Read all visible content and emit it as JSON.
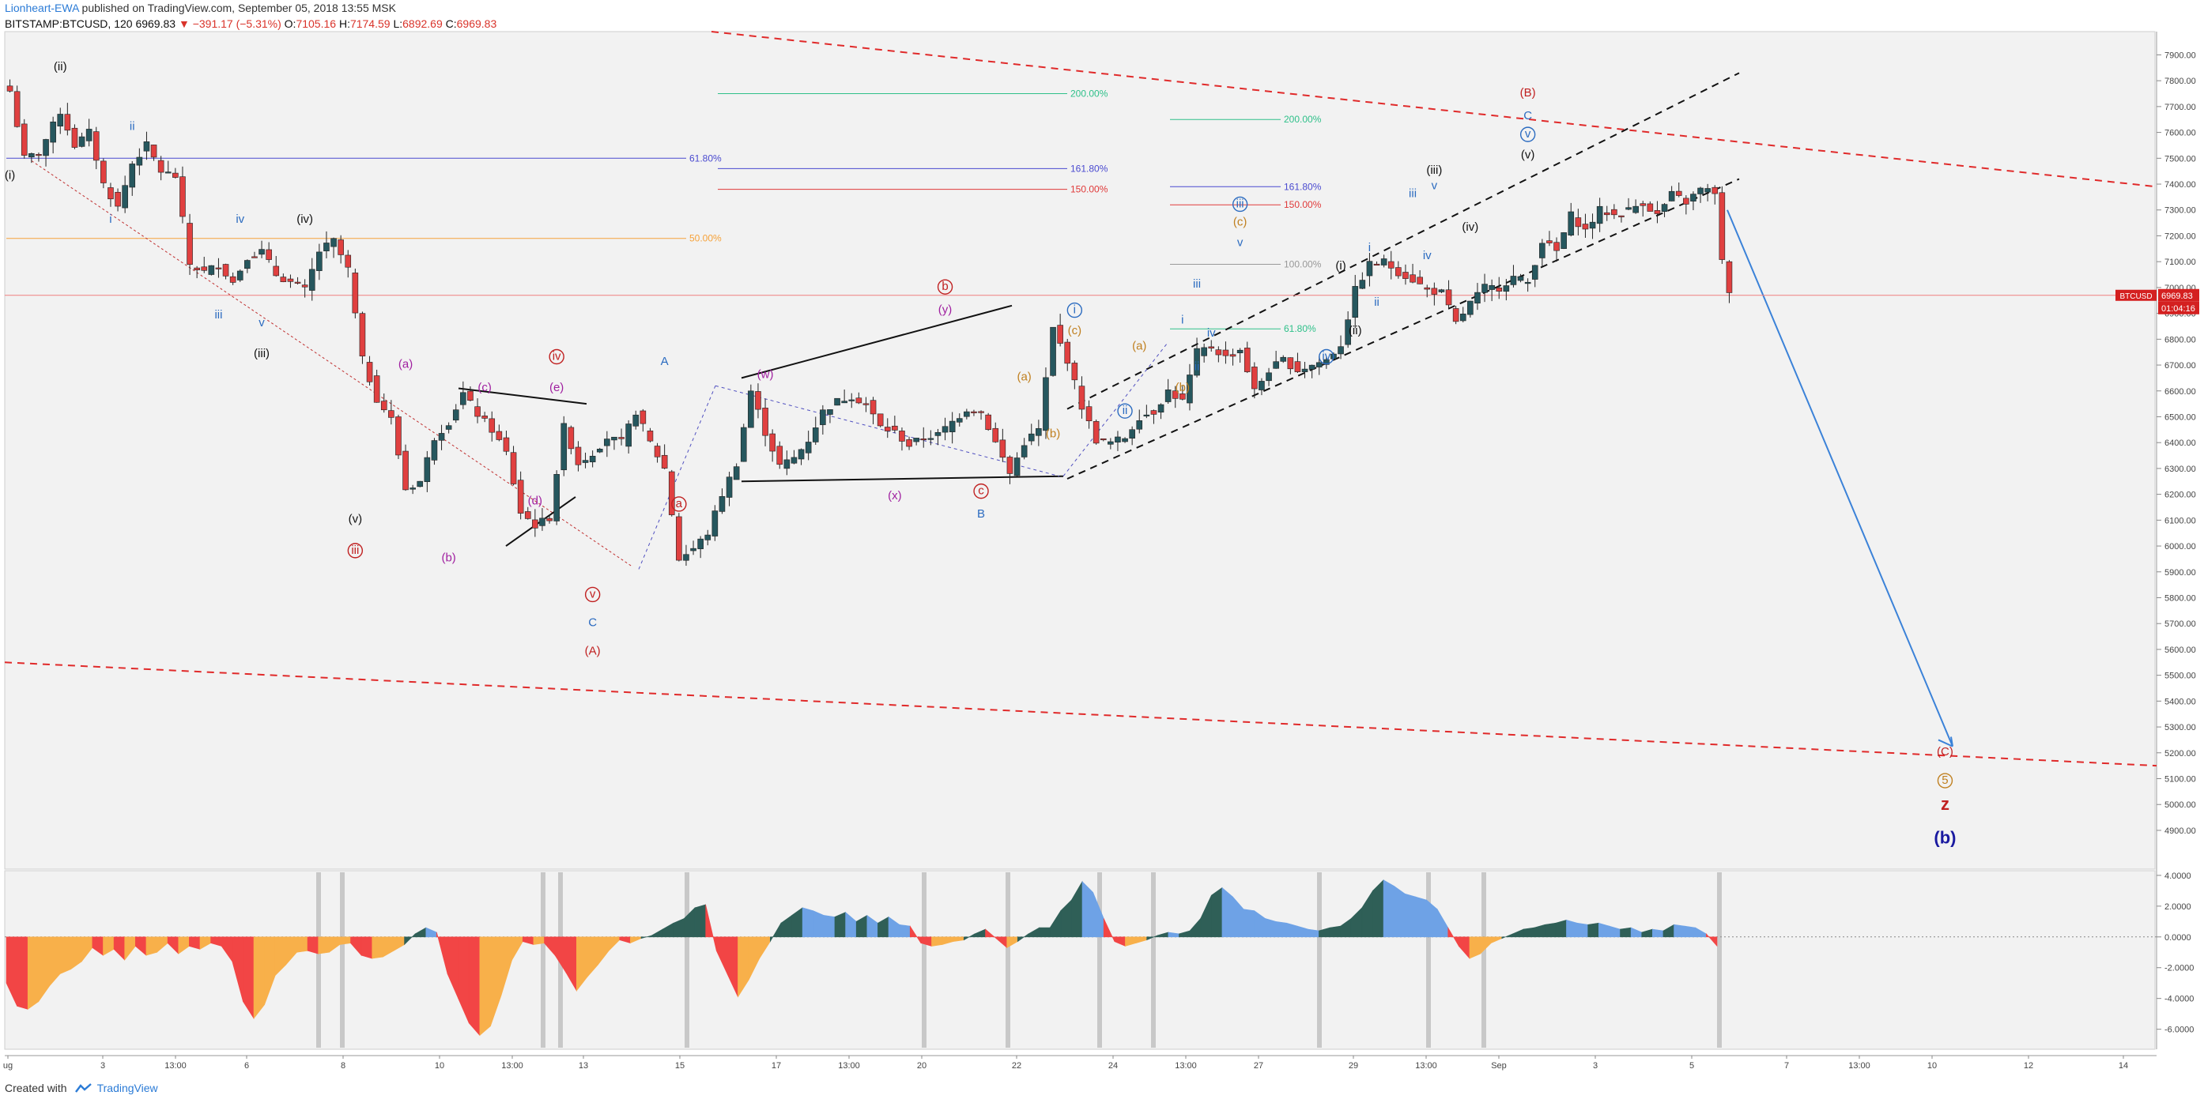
{
  "header": {
    "author": "Lionheart-EWA",
    "published": "published on TradingView.com, September 05, 2018 13:55 MSK",
    "symbol": "BITSTAMP:BTCUSD, 120",
    "last": "6969.83",
    "change": "▼ −391.17 (−5.31%)",
    "o_label": "O:",
    "o": "7105.16",
    "h_label": "H:",
    "h": "7174.59",
    "l_label": "L:",
    "l": "6892.69",
    "c_label": "C:",
    "c": "6969.83"
  },
  "footer": {
    "created_with": "Created with",
    "brand": "TradingView",
    "brand_icon": "tradingview-logo-icon"
  },
  "colors": {
    "up": "#26575e",
    "down": "#e04040",
    "wick": "#222222",
    "channel_red": "#e02a2a",
    "price_line": "#f08080",
    "projection": "#3b82d8",
    "osc_green": "#2f5f57",
    "osc_blue": "#6ea2e6",
    "osc_red": "#f24545",
    "osc_orange": "#f8b04a"
  },
  "chart_data": {
    "type": "candlestick",
    "symbol": "BITSTAMP:BTCUSD",
    "interval": "120",
    "last_price": 6969.83,
    "price_tag": "6969.83",
    "symbol_tag": "BTCUSD",
    "countdown_tag": "01:04:16",
    "ylim": [
      4750,
      7990
    ],
    "x_ticks": [
      "ug",
      "3",
      "13:00",
      "6",
      "8",
      "10",
      "13:00",
      "13",
      "15",
      "17",
      "13:00",
      "20",
      "22",
      "24",
      "13:00",
      "27",
      "29",
      "13:00",
      "Sep",
      "3",
      "5",
      "7",
      "13:00",
      "10",
      "12",
      "14"
    ],
    "price_ticks": [
      4900,
      5000,
      5100,
      5200,
      5300,
      5400,
      5500,
      5600,
      5700,
      5800,
      5900,
      6000,
      6100,
      6200,
      6300,
      6400,
      6500,
      6600,
      6700,
      6800,
      6900,
      7000,
      7100,
      7200,
      7300,
      7400,
      7500,
      7600,
      7700,
      7800,
      7900
    ],
    "price_path": [
      [
        0,
        7760
      ],
      [
        2,
        7500
      ],
      [
        4,
        7520
      ],
      [
        7,
        7680
      ],
      [
        9,
        7550
      ],
      [
        11,
        7600
      ],
      [
        13,
        7400
      ],
      [
        15,
        7310
      ],
      [
        17,
        7480
      ],
      [
        19,
        7550
      ],
      [
        21,
        7450
      ],
      [
        23,
        7430
      ],
      [
        25,
        7090
      ],
      [
        27,
        7060
      ],
      [
        29,
        7090
      ],
      [
        31,
        7020
      ],
      [
        33,
        7120
      ],
      [
        35,
        7140
      ],
      [
        37,
        7050
      ],
      [
        39,
        7020
      ],
      [
        41,
        6990
      ],
      [
        43,
        7140
      ],
      [
        45,
        7180
      ],
      [
        47,
        7070
      ],
      [
        49,
        6720
      ],
      [
        51,
        6570
      ],
      [
        53,
        6490
      ],
      [
        55,
        6220
      ],
      [
        57,
        6250
      ],
      [
        59,
        6420
      ],
      [
        61,
        6480
      ],
      [
        63,
        6590
      ],
      [
        65,
        6510
      ],
      [
        67,
        6450
      ],
      [
        69,
        6360
      ],
      [
        71,
        6130
      ],
      [
        73,
        6080
      ],
      [
        75,
        6110
      ],
      [
        77,
        6460
      ],
      [
        79,
        6320
      ],
      [
        81,
        6360
      ],
      [
        83,
        6420
      ],
      [
        85,
        6400
      ],
      [
        87,
        6520
      ],
      [
        89,
        6400
      ],
      [
        91,
        6300
      ],
      [
        93,
        5950
      ],
      [
        95,
        5990
      ],
      [
        97,
        6050
      ],
      [
        99,
        6200
      ],
      [
        101,
        6320
      ],
      [
        103,
        6600
      ],
      [
        105,
        6440
      ],
      [
        107,
        6310
      ],
      [
        109,
        6340
      ],
      [
        111,
        6410
      ],
      [
        113,
        6520
      ],
      [
        115,
        6560
      ],
      [
        117,
        6580
      ],
      [
        119,
        6550
      ],
      [
        121,
        6460
      ],
      [
        123,
        6440
      ],
      [
        125,
        6390
      ],
      [
        127,
        6420
      ],
      [
        129,
        6430
      ],
      [
        131,
        6480
      ],
      [
        133,
        6530
      ],
      [
        135,
        6520
      ],
      [
        137,
        6400
      ],
      [
        139,
        6280
      ],
      [
        141,
        6400
      ],
      [
        143,
        6450
      ],
      [
        145,
        6840
      ],
      [
        147,
        6720
      ],
      [
        149,
        6540
      ],
      [
        151,
        6410
      ],
      [
        153,
        6400
      ],
      [
        155,
        6420
      ],
      [
        157,
        6500
      ],
      [
        159,
        6520
      ],
      [
        161,
        6600
      ],
      [
        163,
        6560
      ],
      [
        165,
        6750
      ],
      [
        167,
        6770
      ],
      [
        169,
        6730
      ],
      [
        171,
        6760
      ],
      [
        173,
        6600
      ],
      [
        175,
        6680
      ],
      [
        177,
        6720
      ],
      [
        179,
        6680
      ],
      [
        181,
        6700
      ],
      [
        183,
        6720
      ],
      [
        185,
        6780
      ],
      [
        187,
        6990
      ],
      [
        189,
        7090
      ],
      [
        191,
        7100
      ],
      [
        193,
        7060
      ],
      [
        195,
        7030
      ],
      [
        197,
        6990
      ],
      [
        199,
        6980
      ],
      [
        201,
        6860
      ],
      [
        203,
        6940
      ],
      [
        205,
        7000
      ],
      [
        207,
        7000
      ],
      [
        209,
        7040
      ],
      [
        211,
        7020
      ],
      [
        213,
        7180
      ],
      [
        215,
        7140
      ],
      [
        217,
        7280
      ],
      [
        219,
        7220
      ],
      [
        221,
        7300
      ],
      [
        223,
        7280
      ],
      [
        225,
        7300
      ],
      [
        227,
        7330
      ],
      [
        229,
        7280
      ],
      [
        231,
        7360
      ],
      [
        233,
        7330
      ],
      [
        235,
        7380
      ],
      [
        237,
        7370
      ],
      [
        238,
        7100
      ],
      [
        239,
        6970
      ]
    ],
    "fib_levels": [
      {
        "label": "61.80%",
        "price": 7500,
        "color": "#4a4ad0"
      },
      {
        "label": "50.00%",
        "price": 7190,
        "color": "#f6a23a"
      },
      {
        "label": "200.00%",
        "price": 7750,
        "color": "#2fc08a"
      },
      {
        "label": "161.80%",
        "price": 7460,
        "color": "#4a4ad0"
      },
      {
        "label": "150.00%",
        "price": 7380,
        "color": "#e03a3a"
      },
      {
        "label": "200.00%",
        "price": 7650,
        "color": "#2fc08a"
      },
      {
        "label": "161.80%",
        "price": 7390,
        "color": "#4a4ad0"
      },
      {
        "label": "150.00%",
        "price": 7320,
        "color": "#e03a3a"
      },
      {
        "label": "100.00%",
        "price": 7090,
        "color": "#999999"
      },
      {
        "label": "61.80%",
        "price": 6840,
        "color": "#2fc08a"
      }
    ],
    "wave_labels": [
      {
        "text": "(i)",
        "color": "#111",
        "c": 0,
        "p": 7420
      },
      {
        "text": "(ii)",
        "color": "#111",
        "c": 7,
        "p": 7840
      },
      {
        "text": "ii",
        "color": "#2b6bc0",
        "c": 17,
        "p": 7610
      },
      {
        "text": "i",
        "color": "#2b6bc0",
        "c": 14,
        "p": 7250
      },
      {
        "text": "iv",
        "color": "#2b6bc0",
        "c": 32,
        "p": 7250
      },
      {
        "text": "(iv)",
        "color": "#111",
        "c": 41,
        "p": 7250
      },
      {
        "text": "iii",
        "color": "#2b6bc0",
        "c": 29,
        "p": 6880
      },
      {
        "text": "v",
        "color": "#2b6bc0",
        "c": 35,
        "p": 6850
      },
      {
        "text": "(iii)",
        "color": "#111",
        "c": 35,
        "p": 6730
      },
      {
        "text": "(a)",
        "color": "#a020a0",
        "c": 55,
        "p": 6690
      },
      {
        "text": "(c)",
        "color": "#a020a0",
        "c": 66,
        "p": 6600
      },
      {
        "text": "(e)",
        "color": "#a020a0",
        "c": 76,
        "p": 6600
      },
      {
        "text": "iv",
        "color": "#c02020",
        "c": 76,
        "p": 6720,
        "circle": true
      },
      {
        "text": "(d)",
        "color": "#a020a0",
        "c": 73,
        "p": 6160
      },
      {
        "text": "(v)",
        "color": "#111",
        "c": 48,
        "p": 6090
      },
      {
        "text": "iii",
        "color": "#c02020",
        "c": 48,
        "p": 5970,
        "circle": true
      },
      {
        "text": "(b)",
        "color": "#a020a0",
        "c": 61,
        "p": 5940
      },
      {
        "text": "v",
        "color": "#c02020",
        "c": 81,
        "p": 5800,
        "circle": true
      },
      {
        "text": "C",
        "color": "#2b6bc0",
        "c": 81,
        "p": 5690
      },
      {
        "text": "(A)",
        "color": "#c02020",
        "c": 81,
        "p": 5580
      },
      {
        "text": "A",
        "color": "#2b6bc0",
        "c": 91,
        "p": 6700
      },
      {
        "text": "a",
        "color": "#c02020",
        "c": 93,
        "p": 6150,
        "circle": true
      },
      {
        "text": "(w)",
        "color": "#a020a0",
        "c": 105,
        "p": 6650
      },
      {
        "text": "b",
        "color": "#c02020",
        "c": 130,
        "p": 6990,
        "circle": true
      },
      {
        "text": "(y)",
        "color": "#a020a0",
        "c": 130,
        "p": 6900
      },
      {
        "text": "(x)",
        "color": "#a020a0",
        "c": 123,
        "p": 6180
      },
      {
        "text": "c",
        "color": "#c02020",
        "c": 135,
        "p": 6200,
        "circle": true
      },
      {
        "text": "B",
        "color": "#2b6bc0",
        "c": 135,
        "p": 6110
      },
      {
        "text": "(a)",
        "color": "#c08020",
        "c": 141,
        "p": 6640
      },
      {
        "text": "(b)",
        "color": "#c08020",
        "c": 145,
        "p": 6420
      },
      {
        "text": "(c)",
        "color": "#c08020",
        "c": 148,
        "p": 6820
      },
      {
        "text": "i",
        "color": "#2b6bc0",
        "c": 148,
        "p": 6900,
        "circle": true
      },
      {
        "text": "(a)",
        "color": "#c08020",
        "c": 157,
        "p": 6760
      },
      {
        "text": "(b)",
        "color": "#c08020",
        "c": 163,
        "p": 6600
      },
      {
        "text": "ii",
        "color": "#2b6bc0",
        "c": 155,
        "p": 6510,
        "circle": true
      },
      {
        "text": "i",
        "color": "#2b6bc0",
        "c": 163,
        "p": 6860
      },
      {
        "text": "ii",
        "color": "#2b6bc0",
        "c": 165,
        "p": 6680
      },
      {
        "text": "iii",
        "color": "#2b6bc0",
        "c": 165,
        "p": 7000
      },
      {
        "text": "iv",
        "color": "#2b6bc0",
        "c": 167,
        "p": 6810
      },
      {
        "text": "(c)",
        "color": "#c08020",
        "c": 171,
        "p": 7240
      },
      {
        "text": "iii",
        "color": "#2b6bc0",
        "c": 171,
        "p": 7310,
        "circle": true
      },
      {
        "text": "v",
        "color": "#2b6bc0",
        "c": 171,
        "p": 7160
      },
      {
        "text": "(i)",
        "color": "#111",
        "c": 185,
        "p": 7070
      },
      {
        "text": "i",
        "color": "#2b6bc0",
        "c": 189,
        "p": 7140
      },
      {
        "text": "ii",
        "color": "#2b6bc0",
        "c": 190,
        "p": 6930
      },
      {
        "text": "(ii)",
        "color": "#111",
        "c": 187,
        "p": 6820
      },
      {
        "text": "iv",
        "color": "#2b6bc0",
        "c": 183,
        "p": 6720,
        "circle": true
      },
      {
        "text": "iii",
        "color": "#2b6bc0",
        "c": 195,
        "p": 7350
      },
      {
        "text": "iv",
        "color": "#2b6bc0",
        "c": 197,
        "p": 7110
      },
      {
        "text": "v",
        "color": "#2b6bc0",
        "c": 198,
        "p": 7380
      },
      {
        "text": "(iii)",
        "color": "#111",
        "c": 198,
        "p": 7440
      },
      {
        "text": "(iv)",
        "color": "#111",
        "c": 203,
        "p": 7220
      },
      {
        "text": "(v)",
        "color": "#111",
        "c": 211,
        "p": 7500
      },
      {
        "text": "v",
        "color": "#2b6bc0",
        "c": 211,
        "p": 7580,
        "circle": true
      },
      {
        "text": "C",
        "color": "#2b6bc0",
        "c": 211,
        "p": 7650
      },
      {
        "text": "(B)",
        "color": "#c02020",
        "c": 211,
        "p": 7740
      },
      {
        "text": "(C)",
        "color": "#c02020",
        "c": 269,
        "p": 5190
      },
      {
        "text": "5",
        "color": "#c08020",
        "c": 269,
        "p": 5080,
        "circle": true
      },
      {
        "text": "z",
        "color": "#c02020",
        "c": 269,
        "p": 4980,
        "bold": true
      },
      {
        "text": "(b)",
        "color": "#1a1aa0",
        "c": 269,
        "p": 4850,
        "bold": true
      }
    ],
    "oscillator": {
      "ticks": [
        "4.0000",
        "2.0000",
        "0.0000",
        "-2.0000",
        "-4.0000",
        "-6.0000"
      ],
      "ylim": [
        -7.2,
        4.2
      ],
      "values": [
        -3.0,
        -4.5,
        -4.7,
        -4.2,
        -3.2,
        -2.4,
        -2.1,
        -1.6,
        -0.7,
        -1.2,
        -0.8,
        -1.5,
        -0.6,
        -1.2,
        -1.0,
        -0.4,
        -1.1,
        -0.6,
        -0.8,
        -0.4,
        -0.6,
        -1.6,
        -4.2,
        -5.3,
        -4.4,
        -2.5,
        -1.8,
        -1.0,
        -0.9,
        -1.1,
        -1.0,
        -0.5,
        -0.4,
        -1.2,
        -1.4,
        -1.3,
        -0.9,
        -0.5,
        0.2,
        0.6,
        0.3,
        -2.4,
        -4.0,
        -5.6,
        -6.4,
        -5.8,
        -3.8,
        -1.5,
        -0.3,
        -0.5,
        -0.4,
        -1.2,
        -2.3,
        -3.5,
        -2.6,
        -1.8,
        -0.9,
        -0.2,
        -0.4,
        -0.1,
        0.1,
        0.5,
        0.9,
        1.2,
        1.9,
        2.1,
        -0.9,
        -2.4,
        -3.9,
        -2.8,
        -1.4,
        -0.3,
        0.9,
        1.4,
        1.9,
        1.7,
        1.4,
        1.3,
        1.6,
        1.0,
        1.4,
        0.9,
        1.3,
        0.8,
        0.7,
        -0.4,
        -0.6,
        -0.5,
        -0.3,
        -0.2,
        0.2,
        0.5,
        -0.1,
        -0.7,
        -0.3,
        0.2,
        0.6,
        0.6,
        1.7,
        2.4,
        3.6,
        2.9,
        1.2,
        -0.3,
        -0.6,
        -0.4,
        -0.2,
        0.1,
        0.3,
        0.2,
        0.4,
        1.2,
        2.7,
        3.2,
        2.6,
        1.8,
        1.7,
        1.2,
        1.0,
        0.9,
        0.7,
        0.5,
        0.4,
        0.6,
        0.7,
        1.2,
        1.9,
        3.0,
        3.7,
        3.3,
        2.8,
        2.6,
        2.4,
        1.8,
        0.6,
        -0.6,
        -1.4,
        -1.1,
        -0.4,
        -0.1,
        0.2,
        0.5,
        0.6,
        0.8,
        0.9,
        1.1,
        0.9,
        0.8,
        0.9,
        0.7,
        0.5,
        0.6,
        0.3,
        0.5,
        0.4,
        0.8,
        0.7,
        0.6,
        0.2,
        -0.6
      ]
    }
  }
}
